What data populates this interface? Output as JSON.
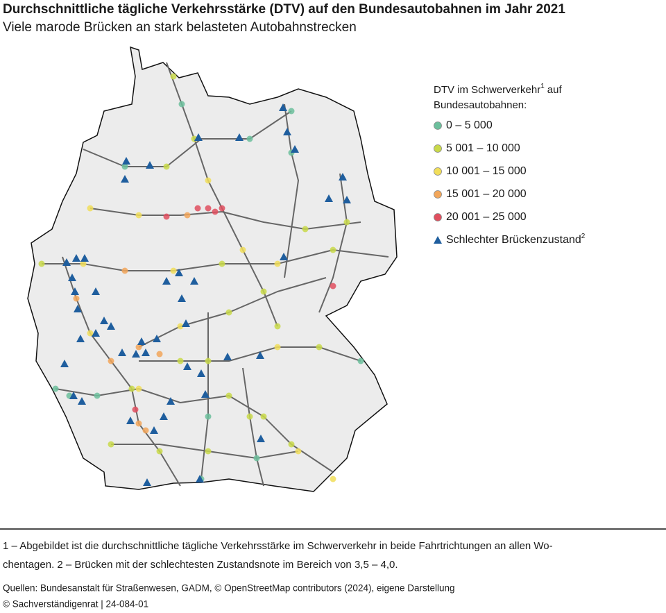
{
  "header": {
    "title": "Durchschnittliche tägliche Verkehrsstärke (DTV) auf den Bundesautobahnen im Jahr 2021",
    "subtitle": "Viele marode Brücken an stark belasteten Autobahnstrecken"
  },
  "legend": {
    "title": {
      "text": "DTV im Schwerverkehr",
      "sup": "1",
      "rest": "auf",
      "line2": "Bundesautobahnen:"
    },
    "items": [
      {
        "label": "0 – 5 000",
        "color": "#6cbf9c"
      },
      {
        "label": "5 001 – 10 000",
        "color": "#c9d94a"
      },
      {
        "label": "10 001 – 15 000",
        "color": "#f1de5a"
      },
      {
        "label": "15 001 – 20 000",
        "color": "#f2a65a"
      },
      {
        "label": "20 001 – 25 000",
        "color": "#e04f5f"
      }
    ],
    "bridge": {
      "label": "Schlechter Brückenzustand",
      "sup": "2",
      "color": "#1f5e9e"
    }
  },
  "footnotes": {
    "line1": "1 – Abgebildet ist die durchschnittliche tägliche Verkehrsstärke im Schwerverkehr in beide Fahrtrichtungen an allen Wo-",
    "line2": "chentagen.  2 – Brücken mit der schlechtesten Zustandsnote im Bereich von 3,5 – 4,0.",
    "sources": "Quellen: Bundesanstalt für Straßenwesen, GADM, © OpenStreetMap contributors (2024), eigene Darstellung",
    "copyright": "© Sachverständigenrat | 24-084-01"
  }
}
